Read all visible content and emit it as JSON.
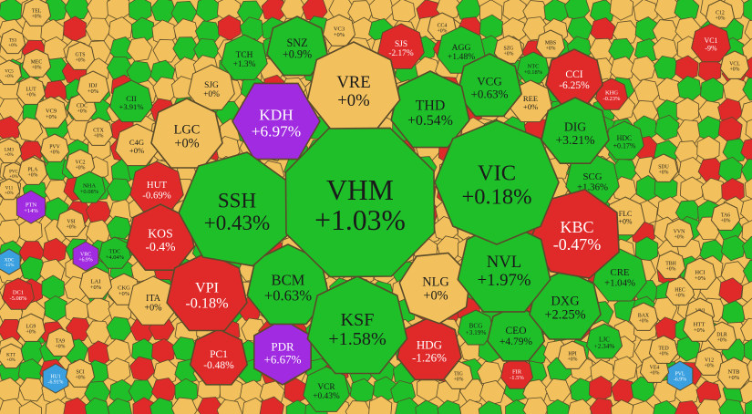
{
  "colors": {
    "up": "#1fbf2a",
    "down": "#e02a2a",
    "flat": "#f2c15d",
    "ceiling": "#a02be0",
    "floor": "#3aa0e0",
    "border": "#5a4a2a",
    "text_dark": "#1a1a1a",
    "text_light": "#ffffff"
  },
  "chart_data": {
    "type": "heatmap",
    "subtype": "voronoi-treemap",
    "title": "",
    "note": "Labels of the many tiny cells are not legible and are omitted; only readable tickers are listed.",
    "cells": [
      {
        "ticker": "VHM",
        "change": "+1.03%",
        "status": "up"
      },
      {
        "ticker": "VIC",
        "change": "+0.18%",
        "status": "up"
      },
      {
        "ticker": "SSH",
        "change": "+0.43%",
        "status": "up"
      },
      {
        "ticker": "KDH",
        "change": "+6.97%",
        "status": "ceiling"
      },
      {
        "ticker": "VRE",
        "change": "+0%",
        "status": "flat"
      },
      {
        "ticker": "THD",
        "change": "+0.54%",
        "status": "up"
      },
      {
        "ticker": "KBC",
        "change": "-0.47%",
        "status": "down"
      },
      {
        "ticker": "NVL",
        "change": "+1.97%",
        "status": "up"
      },
      {
        "ticker": "KSF",
        "change": "+1.58%",
        "status": "up"
      },
      {
        "ticker": "BCM",
        "change": "+0.63%",
        "status": "up"
      },
      {
        "ticker": "NLG",
        "change": "+0%",
        "status": "flat"
      },
      {
        "ticker": "DXG",
        "change": "+2.25%",
        "status": "up"
      },
      {
        "ticker": "VPI",
        "change": "-0.18%",
        "status": "down"
      },
      {
        "ticker": "KOS",
        "change": "-0.4%",
        "status": "down"
      },
      {
        "ticker": "LGC",
        "change": "+0%",
        "status": "flat"
      },
      {
        "ticker": "PDR",
        "change": "+6.67%",
        "status": "ceiling"
      },
      {
        "ticker": "DIG",
        "change": "+3.21%",
        "status": "up"
      },
      {
        "ticker": "VCG",
        "change": "+0.63%",
        "status": "up"
      },
      {
        "ticker": "SNZ",
        "change": "+0.9%",
        "status": "up"
      },
      {
        "ticker": "HDG",
        "change": "-1.26%",
        "status": "down"
      },
      {
        "ticker": "CEO",
        "change": "+4.79%",
        "status": "up"
      },
      {
        "ticker": "CRE",
        "change": "+1.04%",
        "status": "up"
      },
      {
        "ticker": "SCG",
        "change": "+1.36%",
        "status": "up"
      },
      {
        "ticker": "CCI",
        "change": "-6.25%",
        "status": "down"
      },
      {
        "ticker": "REE",
        "change": "+0%",
        "status": "flat"
      },
      {
        "ticker": "HUT",
        "change": "-0.69%",
        "status": "down"
      },
      {
        "ticker": "ITA",
        "change": "+0%",
        "status": "flat"
      },
      {
        "ticker": "PC1",
        "change": "-0.48%",
        "status": "down"
      },
      {
        "ticker": "SJG",
        "change": "+0%",
        "status": "flat"
      },
      {
        "ticker": "TCH",
        "change": "+1.3%",
        "status": "up"
      },
      {
        "ticker": "SJS",
        "change": "-2.17%",
        "status": "down"
      },
      {
        "ticker": "AGG",
        "change": "+1.48%",
        "status": "up"
      },
      {
        "ticker": "VCR",
        "change": "+0.43%",
        "status": "up"
      },
      {
        "ticker": "C4G",
        "change": "+0%",
        "status": "flat"
      },
      {
        "ticker": "CII",
        "change": "+3.91%",
        "status": "up"
      },
      {
        "ticker": "HDC",
        "change": "+0.17%",
        "status": "up"
      },
      {
        "ticker": "FLC",
        "change": "+0%",
        "status": "flat"
      },
      {
        "ticker": "PTN",
        "change": "+14%",
        "status": "ceiling"
      },
      {
        "ticker": "VRC",
        "change": "+6.9%",
        "status": "ceiling"
      },
      {
        "ticker": "BCG",
        "change": "+3.19%",
        "status": "up"
      },
      {
        "ticker": "LJC",
        "change": "+2.34%",
        "status": "up"
      },
      {
        "ticker": "VC3",
        "change": "+0%",
        "status": "flat"
      },
      {
        "ticker": "VC1",
        "change": "-9%",
        "status": "down"
      },
      {
        "ticker": "HU1",
        "change": "-6.91%",
        "status": "floor"
      },
      {
        "ticker": "PVL",
        "change": "-6.9%",
        "status": "floor"
      },
      {
        "ticker": "XDC",
        "change": "-15%",
        "status": "floor"
      },
      {
        "ticker": "DC1",
        "change": "-5.08%",
        "status": "down"
      },
      {
        "ticker": "NHA",
        "change": "+0.08%",
        "status": "up"
      },
      {
        "ticker": "TDC",
        "change": "+4.04%",
        "status": "up"
      },
      {
        "ticker": "FIR",
        "change": "-1.5%",
        "status": "down"
      },
      {
        "ticker": "KHG",
        "change": "-0.23%",
        "status": "down"
      },
      {
        "ticker": "NTC",
        "change": "+0.18%",
        "status": "up"
      },
      {
        "ticker": "VC9",
        "change": "+0%",
        "status": "flat"
      },
      {
        "ticker": "CKG",
        "change": "+0%",
        "status": "flat"
      },
      {
        "ticker": "IDJ",
        "change": "+0%",
        "status": "flat"
      },
      {
        "ticker": "LAI",
        "change": "+0%",
        "status": "flat"
      },
      {
        "ticker": "VSI",
        "change": "+0%",
        "status": "flat"
      },
      {
        "ticker": "SCI",
        "change": "+0%",
        "status": "flat"
      },
      {
        "ticker": "HCI",
        "change": "+0%",
        "status": "flat"
      },
      {
        "ticker": "HTT",
        "change": "+0%",
        "status": "flat"
      },
      {
        "ticker": "VNI",
        "change": "+0%",
        "status": "flat"
      },
      {
        "ticker": "TBH",
        "change": "+0%",
        "status": "flat"
      },
      {
        "ticker": "VVN",
        "change": "+0%",
        "status": "flat"
      },
      {
        "ticker": "GTS",
        "change": "+0%",
        "status": "flat"
      },
      {
        "ticker": "MEC",
        "change": "+0%",
        "status": "flat"
      },
      {
        "ticker": "LUT",
        "change": "+0%",
        "status": "flat"
      },
      {
        "ticker": "TS3",
        "change": "+0%",
        "status": "flat"
      },
      {
        "ticker": "VC5",
        "change": "+0%",
        "status": "flat"
      },
      {
        "ticker": "LM3",
        "change": "+0%",
        "status": "flat"
      },
      {
        "ticker": "PLA",
        "change": "+0%",
        "status": "flat"
      },
      {
        "ticker": "TEL",
        "change": "+0%",
        "status": "flat"
      },
      {
        "ticker": "TA9",
        "change": "+0%",
        "status": "flat"
      },
      {
        "ticker": "LG9",
        "change": "+0%",
        "status": "flat"
      },
      {
        "ticker": "KTT",
        "change": "+0%",
        "status": "flat"
      },
      {
        "ticker": "NTB",
        "change": "+0%",
        "status": "flat"
      },
      {
        "ticker": "V12",
        "change": "+0%",
        "status": "flat"
      },
      {
        "ticker": "DLR",
        "change": "+0%",
        "status": "flat"
      },
      {
        "ticker": "HEC",
        "change": "+0%",
        "status": "flat"
      },
      {
        "ticker": "VE4",
        "change": "+0%",
        "status": "flat"
      },
      {
        "ticker": "TED",
        "change": "+0%",
        "status": "flat"
      },
      {
        "ticker": "BAX",
        "change": "+0%",
        "status": "flat"
      },
      {
        "ticker": "VC2",
        "change": "+0%",
        "status": "flat"
      },
      {
        "ticker": "CC4",
        "change": "+0%",
        "status": "flat"
      },
      {
        "ticker": "SZG",
        "change": "+0%",
        "status": "flat"
      },
      {
        "ticker": "MBS",
        "change": "+0%",
        "status": "flat"
      },
      {
        "ticker": "CDC",
        "change": "+0%",
        "status": "flat"
      },
      {
        "ticker": "CTX",
        "change": "+0%",
        "status": "flat"
      },
      {
        "ticker": "PVV",
        "change": "+0%",
        "status": "flat"
      },
      {
        "ticker": "PVC",
        "change": "+0%",
        "status": "flat"
      },
      {
        "ticker": "V11",
        "change": "+0%",
        "status": "flat"
      },
      {
        "ticker": "TIG",
        "change": "+0%",
        "status": "flat"
      },
      {
        "ticker": "HPI",
        "change": "+0%",
        "status": "flat"
      },
      {
        "ticker": "TA6",
        "change": "+0%",
        "status": "flat"
      },
      {
        "ticker": "SDU",
        "change": "+0%",
        "status": "flat"
      },
      {
        "ticker": "C12",
        "change": "+0%",
        "status": "flat"
      },
      {
        "ticker": "VCL",
        "change": "+0%",
        "status": "flat"
      }
    ]
  }
}
